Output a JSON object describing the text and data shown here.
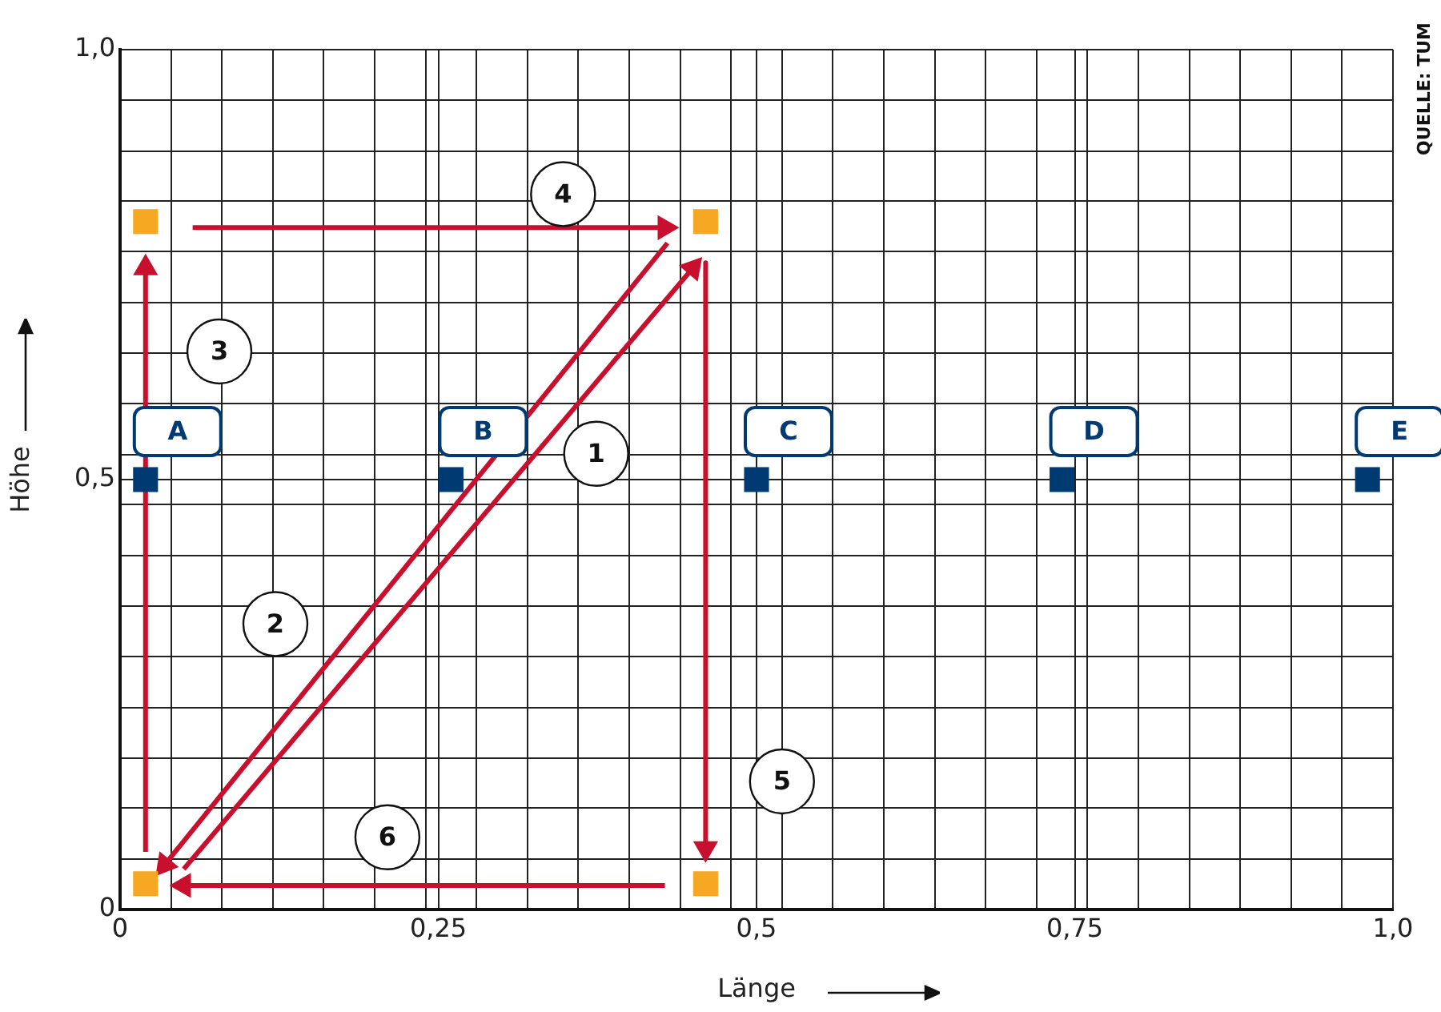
{
  "chart_data": {
    "type": "scatter",
    "xlabel": "Länge",
    "ylabel": "Höhe",
    "xlim": [
      0,
      1
    ],
    "ylim": [
      0,
      1
    ],
    "xticks": [
      0,
      {
        "value": 0.04,
        "label": null
      },
      {
        "value": 0.08,
        "label": null
      },
      {
        "value": 0.12,
        "label": null
      },
      {
        "value": 0.16,
        "label": null
      },
      {
        "value": 0.2,
        "label": null
      },
      {
        "value": 0.24,
        "label": null
      },
      {
        "value": 0.25,
        "label": "0,25"
      },
      {
        "value": 0.28,
        "label": null
      },
      {
        "value": 0.32,
        "label": null
      },
      {
        "value": 0.36,
        "label": null
      },
      {
        "value": 0.4,
        "label": null
      },
      {
        "value": 0.44,
        "label": null
      },
      {
        "value": 0.48,
        "label": null
      },
      {
        "value": 0.5,
        "label": "0,5"
      },
      {
        "value": 0.52,
        "label": null
      },
      {
        "value": 0.56,
        "label": null
      },
      {
        "value": 0.6,
        "label": null
      },
      {
        "value": 0.64,
        "label": null
      },
      {
        "value": 0.68,
        "label": null
      },
      {
        "value": 0.72,
        "label": null
      },
      {
        "value": 0.75,
        "label": "0,75"
      },
      {
        "value": 0.76,
        "label": null
      },
      {
        "value": 0.8,
        "label": null
      },
      {
        "value": 0.84,
        "label": null
      },
      {
        "value": 0.88,
        "label": null
      },
      {
        "value": 0.92,
        "label": null
      },
      {
        "value": 0.96,
        "label": null
      },
      {
        "value": 1,
        "label": "1,0"
      }
    ],
    "yticks": [
      0,
      {
        "value": 0.059,
        "label": null
      },
      {
        "value": 0.118,
        "label": null
      },
      {
        "value": 0.176,
        "label": null
      },
      {
        "value": 0.235,
        "label": null
      },
      {
        "value": 0.294,
        "label": null
      },
      {
        "value": 0.353,
        "label": null
      },
      {
        "value": 0.412,
        "label": null
      },
      {
        "value": 0.471,
        "label": null
      },
      {
        "value": 0.5,
        "label": "0,5"
      },
      {
        "value": 0.529,
        "label": null
      },
      {
        "value": 0.588,
        "label": null
      },
      {
        "value": 0.647,
        "label": null
      },
      {
        "value": 0.706,
        "label": null
      },
      {
        "value": 0.765,
        "label": null
      },
      {
        "value": 0.824,
        "label": null
      },
      {
        "value": 0.882,
        "label": null
      },
      {
        "value": 0.941,
        "label": null
      },
      {
        "value": 1,
        "label": "1,0"
      }
    ],
    "grid": true,
    "legend": false,
    "series": [
      {
        "type": "scatter",
        "marker": "square",
        "color": "#f7a823",
        "x": [
          0.02,
          0.46,
          0.02,
          0.46
        ],
        "values": [
          0.8,
          0.8,
          0.03,
          0.03
        ]
      },
      {
        "type": "scatter",
        "marker": "square",
        "color": "#003a73",
        "x": [
          0.02,
          0.26,
          0.5,
          0.74,
          0.98
        ],
        "values": [
          0.5,
          0.5,
          0.5,
          0.5,
          0.5
        ],
        "value_labels": [
          "A",
          "B",
          "C",
          "D",
          "E"
        ]
      },
      {
        "type": "line",
        "marker": "triangle",
        "color": "#c8102e",
        "x": [
          0.05,
          0.45
        ],
        "values": [
          0.047,
          0.746
        ]
      },
      {
        "type": "line",
        "marker": "triangle",
        "color": "#c8102e",
        "x": [
          0.43,
          0.035
        ],
        "values": [
          0.775,
          0.052
        ]
      },
      {
        "type": "line",
        "marker": "triangle",
        "color": "#c8102e",
        "x": [
          0.02,
          0.02
        ],
        "values": [
          0.067,
          0.746
        ]
      },
      {
        "type": "line",
        "marker": "triangle",
        "color": "#c8102e",
        "x": [
          0.057,
          0.428
        ],
        "values": [
          0.793,
          0.793
        ]
      },
      {
        "type": "line",
        "marker": "triangle",
        "color": "#c8102e",
        "x": [
          0.46,
          0.46
        ],
        "values": [
          0.752,
          0.071
        ]
      },
      {
        "type": "line",
        "marker": "triangle",
        "color": "#c8102e",
        "x": [
          0.428,
          0.05
        ],
        "values": [
          0.028,
          0.028
        ]
      }
    ],
    "annotations": [
      {
        "text": "1",
        "x": 0.374,
        "y": 0.53
      },
      {
        "text": "2",
        "x": 0.122,
        "y": 0.332
      },
      {
        "text": "3",
        "x": 0.078,
        "y": 0.649
      },
      {
        "text": "4",
        "x": 0.348,
        "y": 0.832
      },
      {
        "text": "5",
        "x": 0.52,
        "y": 0.149
      },
      {
        "text": "6",
        "x": 0.21,
        "y": 0.084
      },
      "QUELLE: TUM"
    ]
  }
}
